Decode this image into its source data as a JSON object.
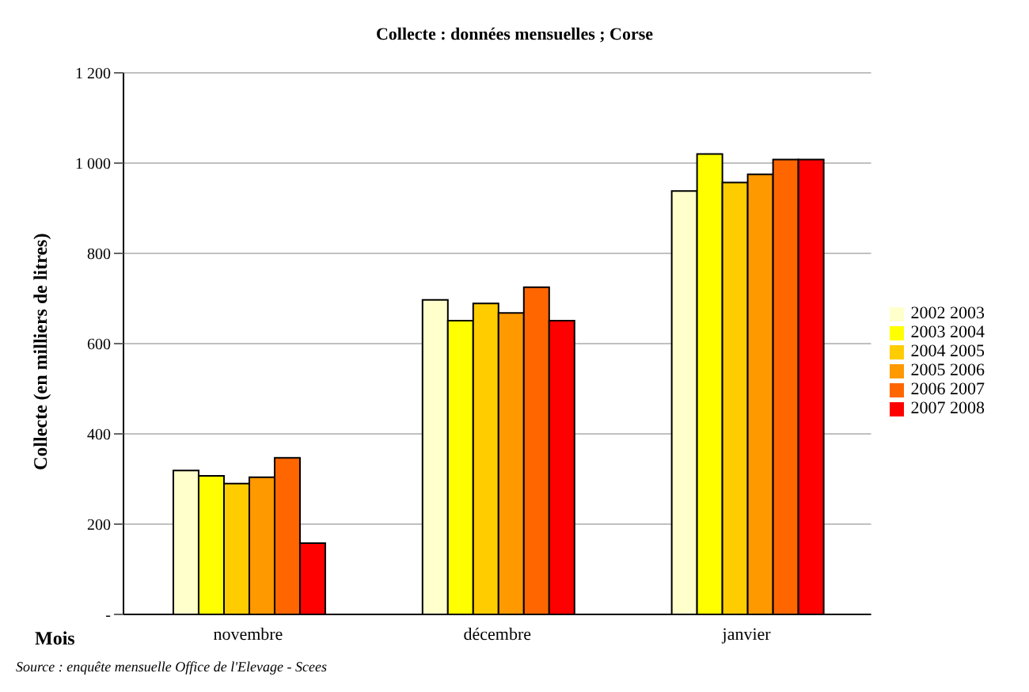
{
  "chart_data": {
    "type": "bar",
    "title": "Collecte : données mensuelles ; Corse",
    "xlabel": "Mois",
    "ylabel": "Collecte (en milliers de litres)",
    "categories": [
      "novembre",
      "décembre",
      "janvier"
    ],
    "series": [
      {
        "name": "2002 2003",
        "color": "#ffffcc",
        "values": [
          319,
          697,
          938
        ]
      },
      {
        "name": "2003 2004",
        "color": "#ffff00",
        "values": [
          307,
          651,
          1020
        ]
      },
      {
        "name": "2004 2005",
        "color": "#ffcc00",
        "values": [
          290,
          689,
          957
        ]
      },
      {
        "name": "2005 2006",
        "color": "#ff9900",
        "values": [
          304,
          668,
          975
        ]
      },
      {
        "name": "2006 2007",
        "color": "#ff6600",
        "values": [
          347,
          725,
          1008
        ]
      },
      {
        "name": "2007 2008",
        "color": "#ff0000",
        "values": [
          158,
          651,
          1008
        ]
      }
    ],
    "ylim": [
      0,
      1200
    ],
    "yticks": [
      {
        "value": 0,
        "label": "-"
      },
      200,
      400,
      600,
      800,
      {
        "value": 1000,
        "label": "1 000"
      },
      {
        "value": 1200,
        "label": "1 200"
      }
    ],
    "grid": "y",
    "legend": "right",
    "annotations": [
      "Source : enquête mensuelle Office de l'Elevage - Scees"
    ]
  }
}
